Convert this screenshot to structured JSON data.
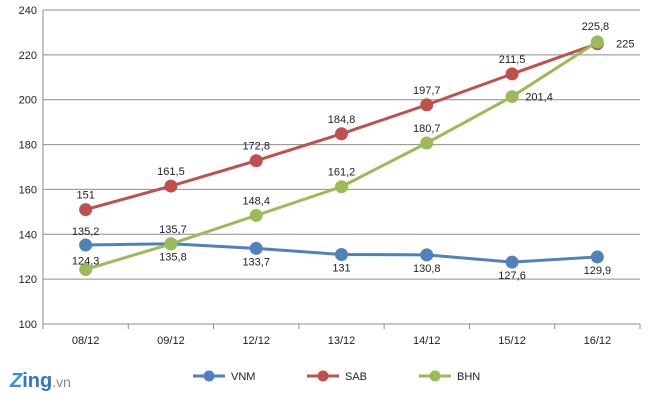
{
  "chart_data": {
    "type": "line",
    "categories": [
      "08/12",
      "09/12",
      "12/12",
      "13/12",
      "14/12",
      "15/12",
      "16/12"
    ],
    "ylim": [
      100,
      240
    ],
    "yticks": [
      100,
      120,
      140,
      160,
      180,
      200,
      220,
      240
    ],
    "grid": true,
    "legend_position": "bottom",
    "series": [
      {
        "name": "VNM",
        "color": "#4f81bd",
        "values": [
          135.2,
          135.8,
          133.7,
          131,
          130.8,
          127.6,
          129.9
        ],
        "labels": [
          "135,2",
          "135,8",
          "133,7",
          "131",
          "130,8",
          "127,6",
          "129,9"
        ]
      },
      {
        "name": "SAB",
        "color": "#c0504d",
        "values": [
          151,
          161.5,
          172.8,
          184.8,
          197.7,
          211.5,
          225
        ],
        "labels": [
          "151",
          "161,5",
          "172,8",
          "184,8",
          "197,7",
          "211,5",
          "225"
        ]
      },
      {
        "name": "BHN",
        "color": "#9bbb59",
        "values": [
          124.3,
          135.7,
          148.4,
          161.2,
          180.7,
          201.4,
          225.8
        ],
        "labels": [
          "124,3",
          "135,7",
          "148,4",
          "161,2",
          "180,7",
          "201,4",
          "225,8"
        ]
      }
    ]
  },
  "logo": {
    "z": "Z",
    "rest": "ing",
    "vn": ".vn"
  }
}
